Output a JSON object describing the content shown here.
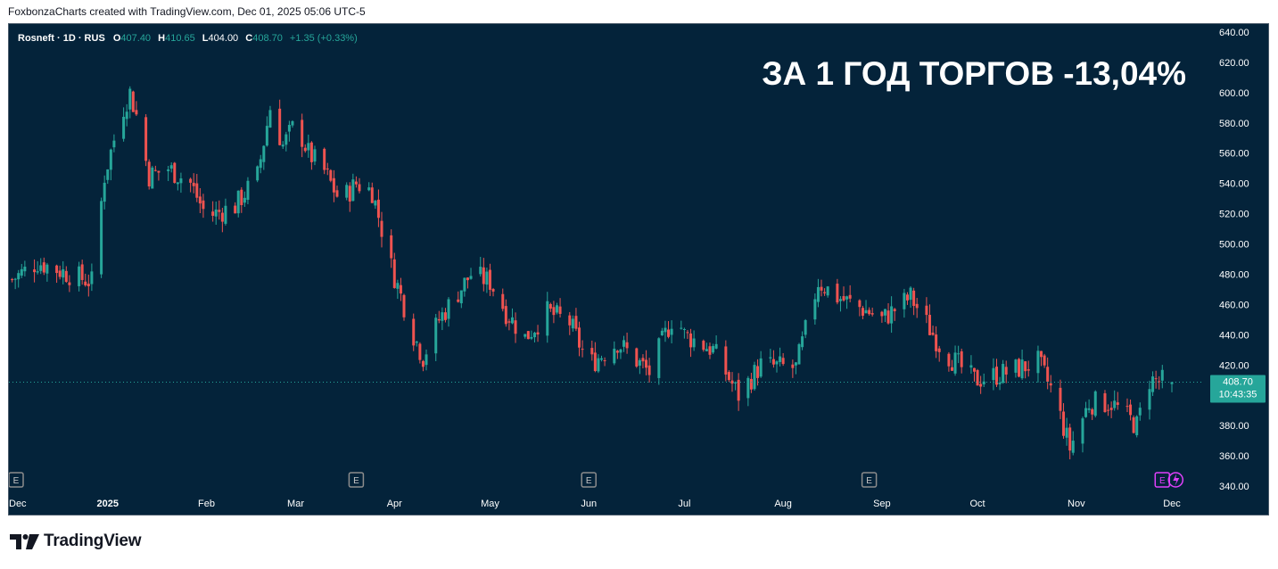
{
  "header": {
    "credit": "FoxbonzaCharts created with TradingView.com, Dec 01, 2025 05:06 UTC-5"
  },
  "legend": {
    "symbol": "Rosneft · 1D · RUS",
    "o_label": "O",
    "o_value": "407.40",
    "h_label": "H",
    "h_value": "410.65",
    "l_label": "L",
    "l_value": "404.00",
    "c_label": "C",
    "c_value": "408.70",
    "change": "+1.35 (+0.33%)"
  },
  "headline": "ЗА 1 ГОД ТОРГОВ -13,04%",
  "price_tag": {
    "price": "408.70",
    "countdown": "10:43:35"
  },
  "earnings_marker_label": "E",
  "footer": {
    "brand": "TradingView"
  },
  "colors": {
    "background": "#04233a",
    "up": "#26a69a",
    "down": "#ef5350",
    "axis_text": "#ffffff",
    "price_tag": "#26a69a"
  },
  "chart_data": {
    "type": "candlestick",
    "symbol": "Rosneft",
    "interval": "1D",
    "exchange": "RUS",
    "y_axis": {
      "range": [
        330,
        645
      ],
      "ticks": [
        "640.00",
        "620.00",
        "600.00",
        "580.00",
        "560.00",
        "540.00",
        "520.00",
        "500.00",
        "480.00",
        "460.00",
        "440.00",
        "420.00",
        "400.00",
        "380.00",
        "360.00",
        "340.00"
      ]
    },
    "x_axis": {
      "labels": [
        {
          "label": "Dec",
          "date": "2024-12-01"
        },
        {
          "label": "2025",
          "date": "2025-01-01"
        },
        {
          "label": "Feb",
          "date": "2025-02-01"
        },
        {
          "label": "Mar",
          "date": "2025-03-01"
        },
        {
          "label": "Apr",
          "date": "2025-04-01"
        },
        {
          "label": "May",
          "date": "2025-05-01"
        },
        {
          "label": "Jun",
          "date": "2025-06-01"
        },
        {
          "label": "Jul",
          "date": "2025-07-01"
        },
        {
          "label": "Aug",
          "date": "2025-08-01"
        },
        {
          "label": "Sep",
          "date": "2025-09-01"
        },
        {
          "label": "Oct",
          "date": "2025-10-01"
        },
        {
          "label": "Nov",
          "date": "2025-11-01"
        },
        {
          "label": "Dec",
          "date": "2025-12-01"
        }
      ]
    },
    "earnings_dates": [
      "2024-12-01",
      "2025-03-20",
      "2025-06-01",
      "2025-08-28",
      "2025-11-28"
    ],
    "last_price": 408.7,
    "closes": [
      {
        "date": "2024-12-01",
        "close": 475
      },
      {
        "date": "2024-12-10",
        "close": 488
      },
      {
        "date": "2024-12-20",
        "close": 480
      },
      {
        "date": "2024-12-27",
        "close": 475
      },
      {
        "date": "2024-12-31",
        "close": 545
      },
      {
        "date": "2025-01-05",
        "close": 585
      },
      {
        "date": "2025-01-08",
        "close": 600
      },
      {
        "date": "2025-01-10",
        "close": 585
      },
      {
        "date": "2025-01-14",
        "close": 545
      },
      {
        "date": "2025-01-20",
        "close": 550
      },
      {
        "date": "2025-01-27",
        "close": 540
      },
      {
        "date": "2025-02-01",
        "close": 518
      },
      {
        "date": "2025-02-10",
        "close": 525
      },
      {
        "date": "2025-02-17",
        "close": 545
      },
      {
        "date": "2025-02-21",
        "close": 590
      },
      {
        "date": "2025-02-25",
        "close": 565
      },
      {
        "date": "2025-03-01",
        "close": 580
      },
      {
        "date": "2025-03-05",
        "close": 560
      },
      {
        "date": "2025-03-10",
        "close": 548
      },
      {
        "date": "2025-03-15",
        "close": 528
      },
      {
        "date": "2025-03-20",
        "close": 540
      },
      {
        "date": "2025-03-25",
        "close": 535
      },
      {
        "date": "2025-03-31",
        "close": 485
      },
      {
        "date": "2025-04-07",
        "close": 440
      },
      {
        "date": "2025-04-10",
        "close": 425
      },
      {
        "date": "2025-04-15",
        "close": 450
      },
      {
        "date": "2025-04-25",
        "close": 480
      },
      {
        "date": "2025-05-01",
        "close": 475
      },
      {
        "date": "2025-05-06",
        "close": 455
      },
      {
        "date": "2025-05-12",
        "close": 438
      },
      {
        "date": "2025-05-19",
        "close": 455
      },
      {
        "date": "2025-05-26",
        "close": 448
      },
      {
        "date": "2025-06-01",
        "close": 420
      },
      {
        "date": "2025-06-10",
        "close": 435
      },
      {
        "date": "2025-06-20",
        "close": 415
      },
      {
        "date": "2025-06-28",
        "close": 455
      },
      {
        "date": "2025-07-01",
        "close": 440
      },
      {
        "date": "2025-07-10",
        "close": 430
      },
      {
        "date": "2025-07-18",
        "close": 400
      },
      {
        "date": "2025-07-25",
        "close": 420
      },
      {
        "date": "2025-08-05",
        "close": 418
      },
      {
        "date": "2025-08-12",
        "close": 475
      },
      {
        "date": "2025-08-18",
        "close": 465
      },
      {
        "date": "2025-08-28",
        "close": 455
      },
      {
        "date": "2025-09-01",
        "close": 450
      },
      {
        "date": "2025-09-10",
        "close": 465
      },
      {
        "date": "2025-09-20",
        "close": 430
      },
      {
        "date": "2025-09-30",
        "close": 410
      },
      {
        "date": "2025-10-10",
        "close": 415
      },
      {
        "date": "2025-10-20",
        "close": 422
      },
      {
        "date": "2025-10-25",
        "close": 400
      },
      {
        "date": "2025-10-30",
        "close": 365
      },
      {
        "date": "2025-11-05",
        "close": 395
      },
      {
        "date": "2025-11-12",
        "close": 395
      },
      {
        "date": "2025-11-20",
        "close": 380
      },
      {
        "date": "2025-11-24",
        "close": 410
      },
      {
        "date": "2025-12-01",
        "close": 408.7
      }
    ]
  }
}
